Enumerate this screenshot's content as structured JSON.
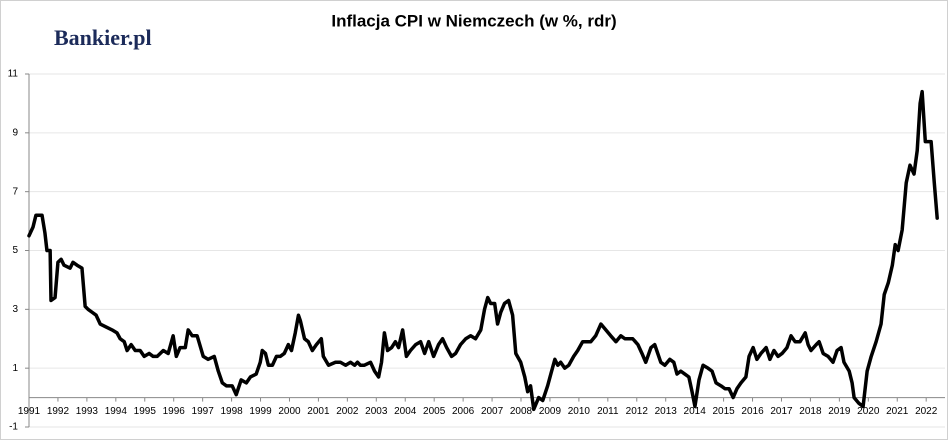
{
  "chart_data": {
    "type": "line",
    "title": "Inflacja CPI w Niemczech (w %, rdr)",
    "brand": "Bankier.pl",
    "color": "#000000",
    "grid": true,
    "xlim": [
      1991,
      2022.65
    ],
    "ylim": [
      -1,
      11
    ],
    "yticks": [
      -1,
      1,
      3,
      5,
      7,
      9,
      11
    ],
    "xticks": [
      1991,
      1992,
      1993,
      1994,
      1995,
      1996,
      1997,
      1998,
      1999,
      2000,
      2001,
      2002,
      2003,
      2004,
      2005,
      2006,
      2007,
      2008,
      2009,
      2010,
      2011,
      2012,
      2013,
      2014,
      2015,
      2016,
      2017,
      2018,
      2019,
      2020,
      2021,
      2022
    ],
    "x": [
      1991.0,
      1991.14,
      1991.24,
      1991.45,
      1991.55,
      1991.62,
      1991.73,
      1991.76,
      1991.9,
      1992.0,
      1992.11,
      1992.21,
      1992.42,
      1992.52,
      1992.66,
      1992.83,
      1992.94,
      1993.04,
      1993.18,
      1993.32,
      1993.46,
      1993.66,
      1993.87,
      1994.04,
      1994.15,
      1994.29,
      1994.39,
      1994.53,
      1994.67,
      1994.84,
      1994.98,
      1995.15,
      1995.29,
      1995.43,
      1995.64,
      1995.81,
      1995.98,
      1996.09,
      1996.22,
      1996.4,
      1996.5,
      1996.64,
      1996.81,
      1997.02,
      1997.19,
      1997.4,
      1997.54,
      1997.68,
      1997.82,
      1998.02,
      1998.16,
      1998.33,
      1998.51,
      1998.65,
      1998.85,
      1998.99,
      1999.06,
      1999.17,
      1999.27,
      1999.41,
      1999.55,
      1999.68,
      1999.82,
      1999.96,
      2000.07,
      2000.2,
      2000.31,
      2000.38,
      2000.52,
      2000.65,
      2000.79,
      2000.93,
      2001.1,
      2001.17,
      2001.35,
      2001.59,
      2001.76,
      2001.94,
      2002.11,
      2002.25,
      2002.35,
      2002.45,
      2002.59,
      2002.8,
      2002.94,
      2003.08,
      2003.18,
      2003.28,
      2003.39,
      2003.53,
      2003.66,
      2003.77,
      2003.91,
      2004.04,
      2004.18,
      2004.36,
      2004.53,
      2004.67,
      2004.81,
      2004.98,
      2005.15,
      2005.29,
      2005.43,
      2005.6,
      2005.74,
      2005.91,
      2006.09,
      2006.26,
      2006.43,
      2006.61,
      2006.74,
      2006.85,
      2006.95,
      2007.09,
      2007.19,
      2007.3,
      2007.43,
      2007.57,
      2007.71,
      2007.82,
      2007.99,
      2008.13,
      2008.23,
      2008.33,
      2008.44,
      2008.61,
      2008.75,
      2008.92,
      2009.03,
      2009.17,
      2009.27,
      2009.37,
      2009.51,
      2009.65,
      2009.82,
      2009.96,
      2010.13,
      2010.27,
      2010.41,
      2010.58,
      2010.76,
      2010.93,
      2011.1,
      2011.28,
      2011.45,
      2011.59,
      2011.73,
      2011.86,
      2012.04,
      2012.18,
      2012.31,
      2012.49,
      2012.62,
      2012.83,
      2012.97,
      2013.14,
      2013.28,
      2013.39,
      2013.52,
      2013.66,
      2013.8,
      2013.91,
      2014.01,
      2014.15,
      2014.29,
      2014.46,
      2014.6,
      2014.74,
      2014.91,
      2015.05,
      2015.19,
      2015.33,
      2015.46,
      2015.6,
      2015.77,
      2015.88,
      2016.02,
      2016.15,
      2016.29,
      2016.47,
      2016.6,
      2016.74,
      2016.88,
      2017.02,
      2017.19,
      2017.33,
      2017.47,
      2017.64,
      2017.82,
      2017.92,
      2018.02,
      2018.2,
      2018.3,
      2018.44,
      2018.61,
      2018.78,
      2018.92,
      2019.06,
      2019.16,
      2019.34,
      2019.44,
      2019.51,
      2019.68,
      2019.82,
      2019.96,
      2020.1,
      2020.27,
      2020.44,
      2020.55,
      2020.69,
      2020.83,
      2020.93,
      2021.03,
      2021.17,
      2021.31,
      2021.44,
      2021.58,
      2021.69,
      2021.79,
      2021.86,
      2021.97,
      2022.07,
      2022.17,
      2022.28,
      2022.38
    ],
    "values": [
      5.5,
      5.8,
      6.2,
      6.2,
      5.6,
      5.0,
      5.0,
      3.3,
      3.4,
      4.6,
      4.7,
      4.5,
      4.4,
      4.6,
      4.5,
      4.4,
      3.1,
      3.0,
      2.9,
      2.8,
      2.5,
      2.4,
      2.3,
      2.2,
      2.0,
      1.9,
      1.6,
      1.8,
      1.6,
      1.6,
      1.4,
      1.5,
      1.4,
      1.4,
      1.6,
      1.5,
      2.1,
      1.4,
      1.7,
      1.7,
      2.3,
      2.1,
      2.1,
      1.4,
      1.3,
      1.4,
      0.9,
      0.5,
      0.4,
      0.4,
      0.1,
      0.6,
      0.5,
      0.7,
      0.8,
      1.2,
      1.6,
      1.5,
      1.1,
      1.1,
      1.4,
      1.4,
      1.5,
      1.8,
      1.6,
      2.2,
      2.8,
      2.6,
      2.0,
      1.9,
      1.6,
      1.8,
      2.0,
      1.4,
      1.1,
      1.2,
      1.2,
      1.1,
      1.2,
      1.1,
      1.2,
      1.1,
      1.1,
      1.2,
      0.9,
      0.7,
      1.2,
      2.2,
      1.6,
      1.7,
      1.9,
      1.7,
      2.3,
      1.4,
      1.6,
      1.8,
      1.9,
      1.5,
      1.9,
      1.4,
      1.8,
      2.0,
      1.7,
      1.4,
      1.5,
      1.8,
      2.0,
      2.1,
      2.0,
      2.3,
      3.0,
      3.4,
      3.2,
      3.2,
      2.5,
      2.9,
      3.2,
      3.3,
      2.8,
      1.5,
      1.2,
      0.7,
      0.2,
      0.4,
      -0.4,
      0.0,
      -0.1,
      0.4,
      0.8,
      1.3,
      1.1,
      1.2,
      1.0,
      1.1,
      1.4,
      1.6,
      1.9,
      1.9,
      1.9,
      2.1,
      2.5,
      2.3,
      2.1,
      1.9,
      2.1,
      2.0,
      2.0,
      2.0,
      1.8,
      1.5,
      1.2,
      1.7,
      1.8,
      1.2,
      1.1,
      1.3,
      1.2,
      0.8,
      0.9,
      0.8,
      0.7,
      0.2,
      -0.3,
      0.6,
      1.1,
      1.0,
      0.9,
      0.5,
      0.4,
      0.3,
      0.3,
      0.0,
      0.3,
      0.5,
      0.7,
      1.4,
      1.7,
      1.3,
      1.5,
      1.7,
      1.3,
      1.6,
      1.4,
      1.5,
      1.7,
      2.1,
      1.9,
      1.9,
      2.2,
      1.8,
      1.6,
      1.8,
      1.9,
      1.5,
      1.4,
      1.2,
      1.6,
      1.7,
      1.2,
      0.9,
      0.5,
      0.0,
      -0.2,
      -0.3,
      0.9,
      1.4,
      1.9,
      2.5,
      3.5,
      3.9,
      4.5,
      5.2,
      5.0,
      5.7,
      7.3,
      7.9,
      7.6,
      8.4,
      10.0,
      10.4,
      8.7,
      8.7,
      8.7,
      7.3,
      6.1
    ]
  }
}
